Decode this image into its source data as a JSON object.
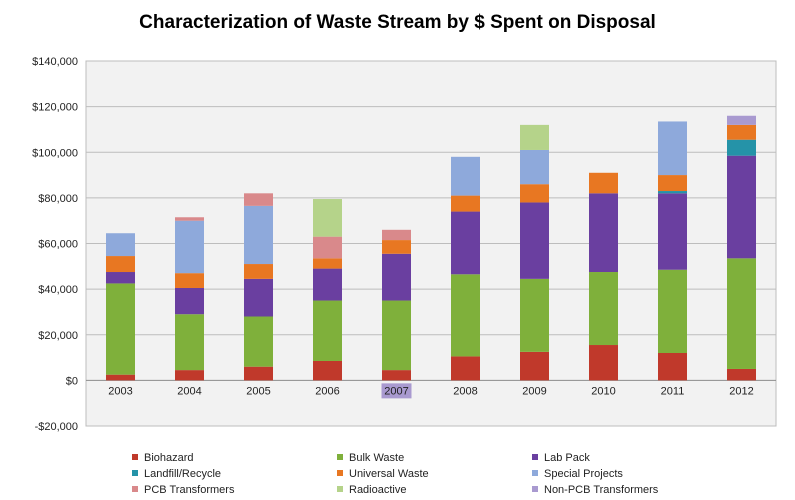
{
  "chart_data": {
    "type": "bar",
    "stacked": true,
    "title": "Characterization of Waste Stream by $ Spent on Disposal",
    "xlabel": "",
    "ylabel": "",
    "ylim": [
      -20000,
      140000
    ],
    "yticks": [
      -20000,
      0,
      20000,
      40000,
      60000,
      80000,
      100000,
      120000,
      140000
    ],
    "ytick_labels": [
      "-$20,000",
      "$0",
      "$20,000",
      "$40,000",
      "$60,000",
      "$80,000",
      "$100,000",
      "$120,000",
      "$140,000"
    ],
    "grid": true,
    "legend_position": "bottom",
    "highlighted_category": "2007",
    "highlight_color": "#a99ad0",
    "categories": [
      "2003",
      "2004",
      "2005",
      "2006",
      "2007",
      "2008",
      "2009",
      "2010",
      "2011",
      "2012"
    ],
    "series": [
      {
        "name": "Biohazard",
        "color": "#c0392b",
        "values": [
          2500,
          4500,
          6000,
          8500,
          4500,
          10500,
          12500,
          15500,
          12000,
          5000
        ]
      },
      {
        "name": "Bulk Waste",
        "color": "#7fb03b",
        "values": [
          40000,
          24500,
          22000,
          26500,
          30500,
          36000,
          32000,
          32000,
          36500,
          48500
        ]
      },
      {
        "name": "Lab Pack",
        "color": "#6a3fa0",
        "values": [
          5000,
          11500,
          16500,
          14000,
          20500,
          27500,
          33500,
          34500,
          33500,
          45000
        ]
      },
      {
        "name": "Landfill/Recycle",
        "color": "#2593a8",
        "values": [
          0,
          0,
          0,
          0,
          0,
          0,
          0,
          0,
          1000,
          7000
        ]
      },
      {
        "name": "Universal Waste",
        "color": "#e87722",
        "values": [
          7000,
          6500,
          6500,
          4500,
          6000,
          7000,
          8000,
          9000,
          7000,
          6500
        ]
      },
      {
        "name": "Special Projects",
        "color": "#8ea9db",
        "values": [
          10000,
          23000,
          25500,
          0,
          0,
          17000,
          15000,
          0,
          23500,
          0
        ]
      },
      {
        "name": "PCB Transformers",
        "color": "#d9898b",
        "values": [
          0,
          1500,
          5500,
          9500,
          4500,
          0,
          0,
          0,
          0,
          0
        ]
      },
      {
        "name": "Radioactive",
        "color": "#b5d38a",
        "values": [
          0,
          0,
          0,
          16500,
          0,
          0,
          11000,
          0,
          0,
          0
        ]
      },
      {
        "name": "Non-PCB Transformers",
        "color": "#a99ad0",
        "values": [
          0,
          0,
          0,
          0,
          0,
          0,
          0,
          0,
          0,
          4000
        ]
      }
    ]
  }
}
